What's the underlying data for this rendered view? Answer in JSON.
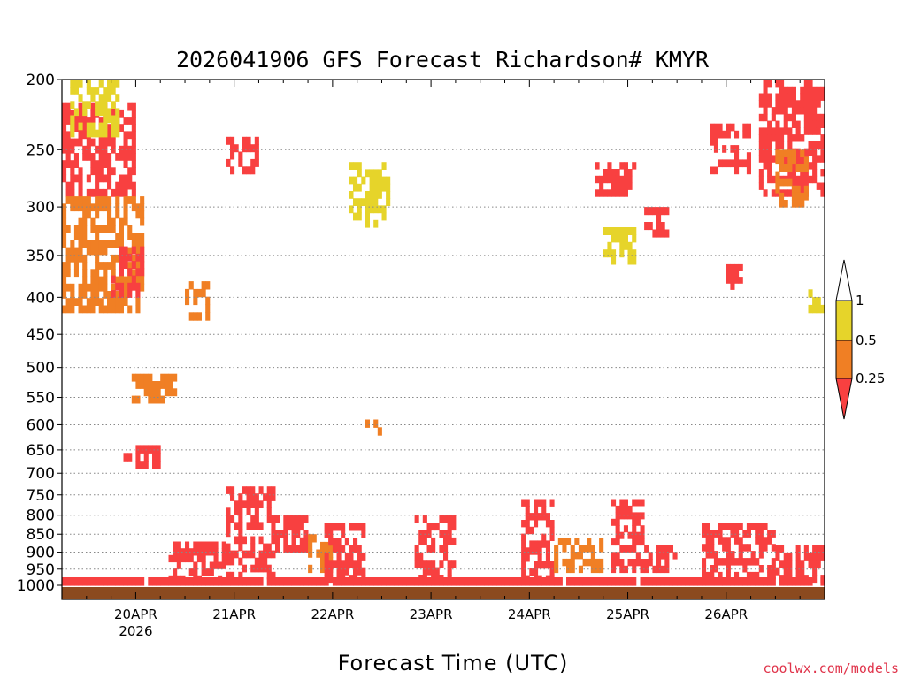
{
  "chart_data": {
    "type": "heatmap",
    "title": "2026041906 GFS Forecast Richardson# KMYR",
    "xlabel": "Forecast Time (UTC)",
    "ylabel": "",
    "y_scale": "log",
    "ylim": [
      1000,
      200
    ],
    "yticks": [
      200,
      250,
      300,
      350,
      400,
      450,
      500,
      550,
      600,
      650,
      700,
      750,
      800,
      850,
      900,
      950,
      1000
    ],
    "xticks": [
      {
        "label": "20APR",
        "sublabel": "2026",
        "hours_from_start": 18
      },
      {
        "label": "21APR",
        "sublabel": "",
        "hours_from_start": 42
      },
      {
        "label": "22APR",
        "sublabel": "",
        "hours_from_start": 66
      },
      {
        "label": "23APR",
        "sublabel": "",
        "hours_from_start": 90
      },
      {
        "label": "24APR",
        "sublabel": "",
        "hours_from_start": 114
      },
      {
        "label": "25APR",
        "sublabel": "",
        "hours_from_start": 138
      },
      {
        "label": "26APR",
        "sublabel": "",
        "hours_from_start": 162
      }
    ],
    "x_range_hours": [
      0,
      186
    ],
    "levels": [
      {
        "label": "1",
        "color": "#ffffff"
      },
      {
        "label": "0.5",
        "color": "#e6d42a"
      },
      {
        "label": "0.25",
        "color": "#f07f24"
      },
      {
        "label": "",
        "color": "#f84040"
      }
    ],
    "grid": "dotted horizontal at pressure ticks",
    "ground_color": "#8b4a1f",
    "low_ri_regions": [
      {
        "t": [
          0,
          18
        ],
        "p": [
          215,
          290
        ],
        "level": 3
      },
      {
        "t": [
          0,
          20
        ],
        "p": [
          290,
          420
        ],
        "level": 2
      },
      {
        "t": [
          2,
          14
        ],
        "p": [
          200,
          240
        ],
        "level": 1
      },
      {
        "t": [
          12,
          20
        ],
        "p": [
          340,
          400
        ],
        "level": 3
      },
      {
        "t": [
          17,
          28
        ],
        "p": [
          510,
          560
        ],
        "level": 2
      },
      {
        "t": [
          15,
          24
        ],
        "p": [
          640,
          690
        ],
        "level": 3
      },
      {
        "t": [
          30,
          36
        ],
        "p": [
          380,
          430
        ],
        "level": 2
      },
      {
        "t": [
          40,
          48
        ],
        "p": [
          240,
          270
        ],
        "level": 3
      },
      {
        "t": [
          70,
          80
        ],
        "p": [
          260,
          320
        ],
        "level": 1
      },
      {
        "t": [
          74,
          78
        ],
        "p": [
          590,
          620
        ],
        "level": 2
      },
      {
        "t": [
          130,
          140
        ],
        "p": [
          260,
          290
        ],
        "level": 3
      },
      {
        "t": [
          142,
          148
        ],
        "p": [
          300,
          330
        ],
        "level": 3
      },
      {
        "t": [
          158,
          168
        ],
        "p": [
          230,
          270
        ],
        "level": 3
      },
      {
        "t": [
          170,
          186
        ],
        "p": [
          200,
          290
        ],
        "level": 3
      },
      {
        "t": [
          162,
          166
        ],
        "p": [
          360,
          390
        ],
        "level": 3
      },
      {
        "t": [
          174,
          182
        ],
        "p": [
          250,
          300
        ],
        "level": 2
      },
      {
        "t": [
          182,
          186
        ],
        "p": [
          390,
          420
        ],
        "level": 1
      },
      {
        "t": [
          132,
          140
        ],
        "p": [
          320,
          360
        ],
        "level": 1
      },
      {
        "t": [
          40,
          52
        ],
        "p": [
          730,
          980
        ],
        "level": 3
      },
      {
        "t": [
          52,
          60
        ],
        "p": [
          800,
          900
        ],
        "level": 3
      },
      {
        "t": [
          60,
          66
        ],
        "p": [
          850,
          960
        ],
        "level": 2
      },
      {
        "t": [
          64,
          74
        ],
        "p": [
          820,
          990
        ],
        "level": 3
      },
      {
        "t": [
          86,
          96
        ],
        "p": [
          800,
          990
        ],
        "level": 3
      },
      {
        "t": [
          112,
          120
        ],
        "p": [
          760,
          990
        ],
        "level": 3
      },
      {
        "t": [
          120,
          132
        ],
        "p": [
          860,
          960
        ],
        "level": 2
      },
      {
        "t": [
          134,
          142
        ],
        "p": [
          760,
          880
        ],
        "level": 3
      },
      {
        "t": [
          134,
          150
        ],
        "p": [
          880,
          960
        ],
        "level": 3
      },
      {
        "t": [
          156,
          174
        ],
        "p": [
          820,
          980
        ],
        "level": 3
      },
      {
        "t": [
          174,
          186
        ],
        "p": [
          880,
          990
        ],
        "level": 3
      },
      {
        "t": [
          26,
          40
        ],
        "p": [
          870,
          990
        ],
        "level": 3
      },
      {
        "t": [
          0,
          186
        ],
        "p": [
          975,
          1000
        ],
        "level": 3
      }
    ]
  },
  "credit": "coolwx.com/models"
}
